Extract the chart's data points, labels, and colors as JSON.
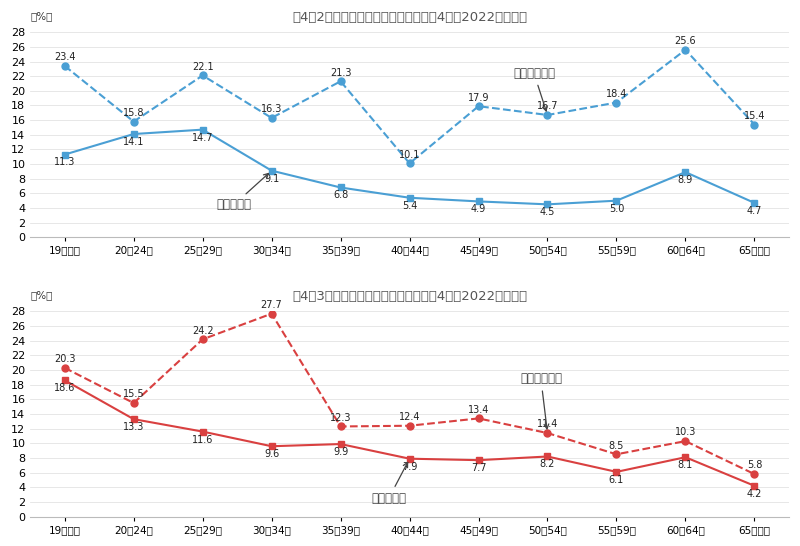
{
  "categories": [
    "19歳以下",
    "20～24歳",
    "25～29歳",
    "30～34歳",
    "35～39歳",
    "40～44歳",
    "45～49歳",
    "50～54歳",
    "55～59歳",
    "60～64歳",
    "65歳以上"
  ],
  "male_general": [
    11.3,
    14.1,
    14.7,
    9.1,
    6.8,
    5.4,
    4.9,
    4.5,
    5.0,
    8.9,
    4.7
  ],
  "male_part": [
    23.4,
    15.8,
    22.1,
    16.3,
    21.3,
    10.1,
    17.9,
    16.7,
    18.4,
    25.6,
    15.4
  ],
  "female_general": [
    18.6,
    13.3,
    11.6,
    9.6,
    9.9,
    7.9,
    7.7,
    8.2,
    6.1,
    8.1,
    4.2
  ],
  "female_part": [
    20.3,
    15.5,
    24.2,
    27.7,
    12.3,
    12.4,
    13.4,
    11.4,
    8.5,
    10.3,
    5.8
  ],
  "title_male": "図4－2　年齢階級別転職入職率（令和4年（2022）・男）",
  "title_female": "図4－3　年齢階級別転職入職率（令和4年（2022）・女）",
  "ylabel": "（%）",
  "ylim": [
    0,
    28
  ],
  "yticks": [
    0,
    2,
    4,
    6,
    8,
    10,
    12,
    14,
    16,
    18,
    20,
    22,
    24,
    26,
    28
  ],
  "color_male": "#4a9fd4",
  "color_female": "#d94040",
  "label_male_general": "男（一般）",
  "label_male_part": "男（パート）",
  "label_female_general": "女（一般）",
  "label_female_part": "女（パート）",
  "bg_color": "#ffffff",
  "title_color": "#555555",
  "annotation_color": "#444444"
}
